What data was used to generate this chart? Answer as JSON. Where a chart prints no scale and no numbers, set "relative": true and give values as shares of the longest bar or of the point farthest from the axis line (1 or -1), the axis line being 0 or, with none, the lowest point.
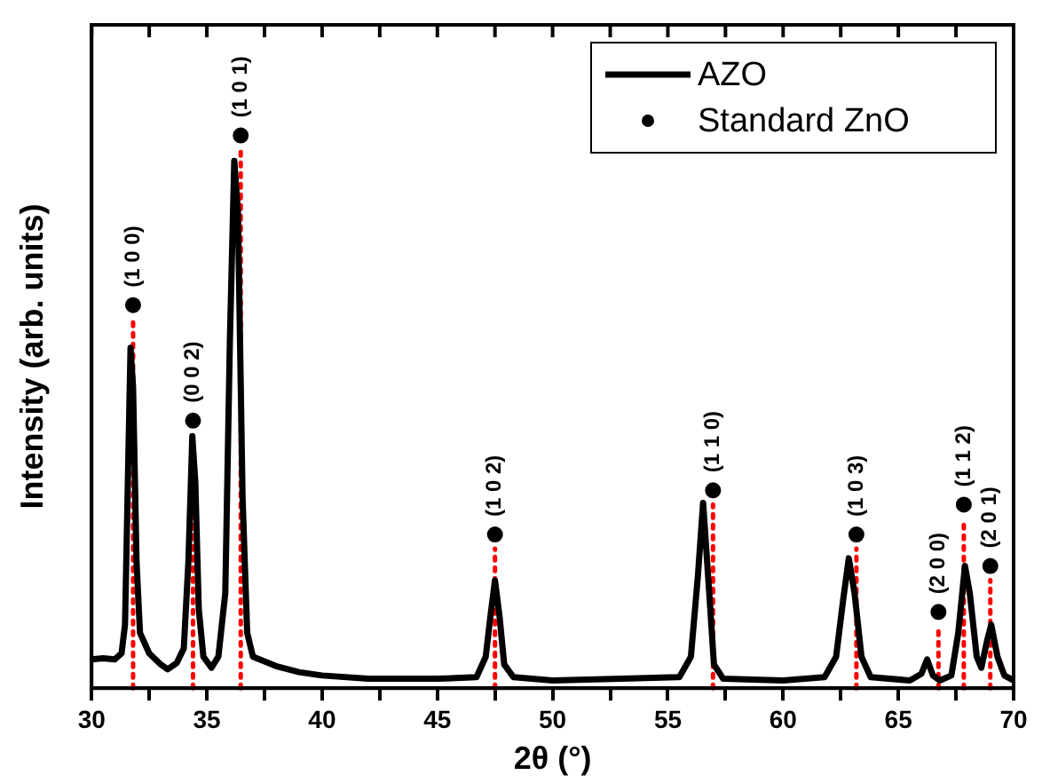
{
  "chart_data": {
    "type": "line",
    "relative": true,
    "xlabel": "2θ (°)",
    "ylabel": "Intensity (arb. units)",
    "xlim": [
      30,
      70
    ],
    "xticks": [
      30,
      {
        "value": 32.5,
        "label": null
      },
      35,
      {
        "value": 37.5,
        "label": null
      },
      40,
      {
        "value": 42.5,
        "label": null
      },
      45,
      {
        "value": 47.5,
        "label": null
      },
      50,
      {
        "value": 52.5,
        "label": null
      },
      55,
      {
        "value": 57.5,
        "label": null
      },
      60,
      {
        "value": 62.5,
        "label": null
      },
      65,
      {
        "value": 67.5,
        "label": null
      },
      70
    ],
    "grid": false,
    "legend": "top right",
    "series": [
      {
        "name": "AZO",
        "color": "#000000",
        "marker": "none",
        "x": [
          30,
          30.5,
          31.0,
          31.3,
          31.45,
          31.6,
          31.69,
          31.8,
          31.95,
          32.1,
          32.5,
          33.0,
          33.3,
          33.7,
          34.0,
          34.2,
          34.37,
          34.5,
          34.65,
          34.85,
          35.2,
          35.5,
          35.8,
          36.0,
          36.19,
          36.35,
          36.55,
          36.75,
          37.0,
          38,
          39,
          40,
          42,
          45,
          46.7,
          47.1,
          47.3,
          47.5,
          47.7,
          47.9,
          48.3,
          50,
          53,
          55.5,
          56.0,
          56.3,
          56.53,
          56.75,
          57.0,
          57.4,
          60,
          61.8,
          62.3,
          62.6,
          62.85,
          63.1,
          63.4,
          63.8,
          65.5,
          66.0,
          66.25,
          66.5,
          66.8,
          67.3,
          67.6,
          67.89,
          68.1,
          68.4,
          68.6,
          68.85,
          69.03,
          69.3,
          69.6,
          70
        ],
        "values": [
          0.052,
          0.054,
          0.052,
          0.063,
          0.115,
          0.43,
          0.616,
          0.544,
          0.229,
          0.1,
          0.063,
          0.043,
          0.034,
          0.046,
          0.072,
          0.229,
          0.456,
          0.372,
          0.143,
          0.057,
          0.037,
          0.057,
          0.172,
          0.63,
          0.954,
          0.86,
          0.344,
          0.1,
          0.057,
          0.04,
          0.029,
          0.023,
          0.017,
          0.017,
          0.02,
          0.057,
          0.129,
          0.195,
          0.129,
          0.043,
          0.02,
          0.014,
          0.017,
          0.02,
          0.057,
          0.201,
          0.335,
          0.201,
          0.043,
          0.017,
          0.014,
          0.02,
          0.057,
          0.158,
          0.235,
          0.172,
          0.057,
          0.02,
          0.014,
          0.026,
          0.052,
          0.023,
          0.014,
          0.023,
          0.1,
          0.221,
          0.172,
          0.057,
          0.037,
          0.086,
          0.115,
          0.057,
          0.023,
          0.014
        ]
      },
      {
        "name": "Standard ZnO",
        "type": "scatter",
        "color": "#000000",
        "marker": "circle",
        "x": [
          31.8,
          34.4,
          36.47,
          47.5,
          56.96,
          63.18,
          66.74,
          67.84,
          68.99
        ],
        "values": [
          0.693,
          0.484,
          1,
          0.278,
          0.358,
          0.278,
          0.138,
          0.332,
          0.221
        ]
      }
    ],
    "ref_lines": [
      {
        "axis": "x",
        "value": 31.8,
        "color": "#ff0000",
        "line_style": "dotted"
      },
      {
        "axis": "x",
        "value": 34.4,
        "color": "#ff0000",
        "line_style": "dotted"
      },
      {
        "axis": "x",
        "value": 36.47,
        "color": "#ff0000",
        "line_style": "dotted"
      },
      {
        "axis": "x",
        "value": 47.5,
        "color": "#ff0000",
        "line_style": "dotted"
      },
      {
        "axis": "x",
        "value": 56.96,
        "color": "#ff0000",
        "line_style": "dotted"
      },
      {
        "axis": "x",
        "value": 63.18,
        "color": "#ff0000",
        "line_style": "dotted"
      },
      {
        "axis": "x",
        "value": 66.74,
        "color": "#ff0000",
        "line_style": "dotted"
      },
      {
        "axis": "x",
        "value": 67.84,
        "color": "#ff0000",
        "line_style": "dotted"
      },
      {
        "axis": "x",
        "value": 68.99,
        "color": "#ff0000",
        "line_style": "dotted"
      }
    ],
    "annotations": [
      {
        "text": "(1 0 0)",
        "x": 31.8,
        "y": 0.693
      },
      {
        "text": "(0 0 2)",
        "x": 34.4,
        "y": 0.484
      },
      {
        "text": "(1 0 1)",
        "x": 36.47,
        "y": 1
      },
      {
        "text": "(1 0 2)",
        "x": 47.5,
        "y": 0.278
      },
      {
        "text": "(1 1 0)",
        "x": 56.96,
        "y": 0.358
      },
      {
        "text": "(1 0 3)",
        "x": 63.18,
        "y": 0.278
      },
      {
        "text": "(2 0 0)",
        "x": 66.74,
        "y": 0.138
      },
      {
        "text": "(1 1 2)",
        "x": 67.84,
        "y": 0.332
      },
      {
        "text": "(2 0 1)",
        "x": 68.99,
        "y": 0.221
      }
    ]
  }
}
